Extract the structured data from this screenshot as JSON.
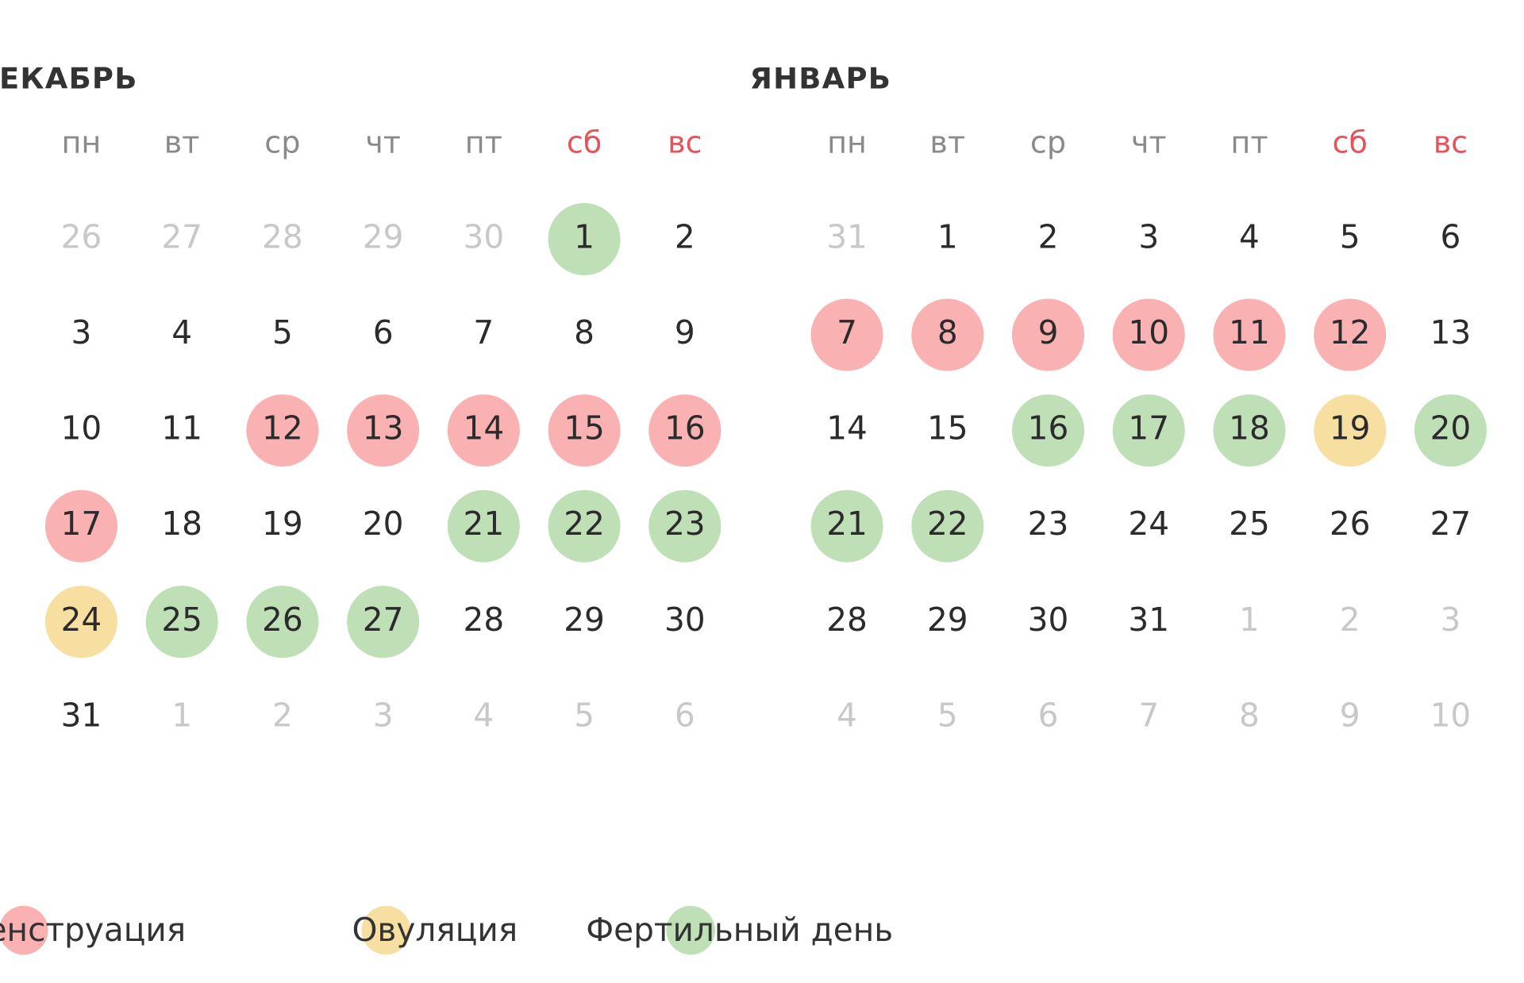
{
  "months": [
    {
      "title": "ДЕКАБРЬ",
      "weekdays": [
        {
          "text": "пн",
          "weekend": false
        },
        {
          "text": "вт",
          "weekend": false
        },
        {
          "text": "ср",
          "weekend": false
        },
        {
          "text": "чт",
          "weekend": false
        },
        {
          "text": "пт",
          "weekend": false
        },
        {
          "text": "сб",
          "weekend": true
        },
        {
          "text": "вс",
          "weekend": true
        }
      ],
      "cells": [
        {
          "day": 26,
          "muted": true
        },
        {
          "day": 27,
          "muted": true
        },
        {
          "day": 28,
          "muted": true
        },
        {
          "day": 29,
          "muted": true
        },
        {
          "day": 30,
          "muted": true
        },
        {
          "day": 1,
          "mark": 2
        },
        {
          "day": 2
        },
        {
          "day": 3
        },
        {
          "day": 4
        },
        {
          "day": 5
        },
        {
          "day": 6
        },
        {
          "day": 7
        },
        {
          "day": 8
        },
        {
          "day": 9
        },
        {
          "day": 10
        },
        {
          "day": 11
        },
        {
          "day": 12,
          "mark": 0
        },
        {
          "day": 13,
          "mark": 0
        },
        {
          "day": 14,
          "mark": 0
        },
        {
          "day": 15,
          "mark": 0
        },
        {
          "day": 16,
          "mark": 0
        },
        {
          "day": 17,
          "mark": 0
        },
        {
          "day": 18
        },
        {
          "day": 19
        },
        {
          "day": 20
        },
        {
          "day": 21,
          "mark": 2
        },
        {
          "day": 22,
          "mark": 2
        },
        {
          "day": 23,
          "mark": 2
        },
        {
          "day": 24,
          "mark": 1
        },
        {
          "day": 25,
          "mark": 2
        },
        {
          "day": 26,
          "mark": 2
        },
        {
          "day": 27,
          "mark": 2
        },
        {
          "day": 28
        },
        {
          "day": 29
        },
        {
          "day": 30
        },
        {
          "day": 31
        },
        {
          "day": 1,
          "muted": true
        },
        {
          "day": 2,
          "muted": true
        },
        {
          "day": 3,
          "muted": true
        },
        {
          "day": 4,
          "muted": true
        },
        {
          "day": 5,
          "muted": true
        },
        {
          "day": 6,
          "muted": true
        }
      ]
    },
    {
      "title": "ЯНВАРЬ",
      "weekdays": [
        {
          "text": "пн",
          "weekend": false
        },
        {
          "text": "вт",
          "weekend": false
        },
        {
          "text": "ср",
          "weekend": false
        },
        {
          "text": "чт",
          "weekend": false
        },
        {
          "text": "пт",
          "weekend": false
        },
        {
          "text": "сб",
          "weekend": true
        },
        {
          "text": "вс",
          "weekend": true
        }
      ],
      "cells": [
        {
          "day": 31,
          "muted": true
        },
        {
          "day": 1
        },
        {
          "day": 2
        },
        {
          "day": 3
        },
        {
          "day": 4
        },
        {
          "day": 5
        },
        {
          "day": 6
        },
        {
          "day": 7,
          "mark": 0
        },
        {
          "day": 8,
          "mark": 0
        },
        {
          "day": 9,
          "mark": 0
        },
        {
          "day": 10,
          "mark": 0
        },
        {
          "day": 11,
          "mark": 0
        },
        {
          "day": 12,
          "mark": 0
        },
        {
          "day": 13
        },
        {
          "day": 14
        },
        {
          "day": 15
        },
        {
          "day": 16,
          "mark": 2
        },
        {
          "day": 17,
          "mark": 2
        },
        {
          "day": 18,
          "mark": 2
        },
        {
          "day": 19,
          "mark": 1
        },
        {
          "day": 20,
          "mark": 2
        },
        {
          "day": 21,
          "mark": 2
        },
        {
          "day": 22,
          "mark": 2
        },
        {
          "day": 23
        },
        {
          "day": 24
        },
        {
          "day": 25
        },
        {
          "day": 26
        },
        {
          "day": 27
        },
        {
          "day": 28
        },
        {
          "day": 29
        },
        {
          "day": 30
        },
        {
          "day": 31
        },
        {
          "day": 1,
          "muted": true
        },
        {
          "day": 2,
          "muted": true
        },
        {
          "day": 3,
          "muted": true
        },
        {
          "day": 4,
          "muted": true
        },
        {
          "day": 5,
          "muted": true
        },
        {
          "day": 6,
          "muted": true
        },
        {
          "day": 7,
          "muted": true
        },
        {
          "day": 8,
          "muted": true
        },
        {
          "day": 9,
          "muted": true
        },
        {
          "day": 10,
          "muted": true
        }
      ]
    }
  ],
  "legend": [
    {
      "label": "Менструация",
      "color": "#f9b2b1"
    },
    {
      "label": "Овуляция",
      "color": "#f7dfa2"
    },
    {
      "label": "Фертильный день",
      "color": "#bfe0b6"
    }
  ]
}
